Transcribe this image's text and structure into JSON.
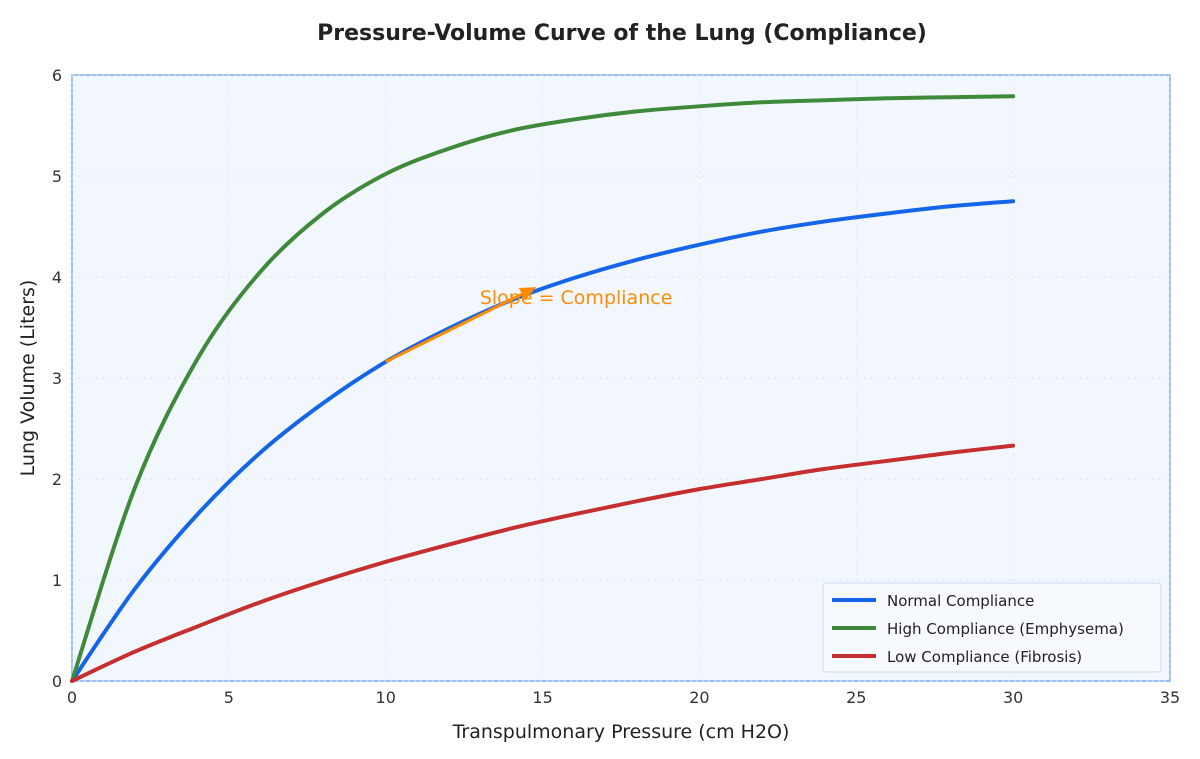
{
  "chart_data": {
    "type": "line",
    "title": "Pressure-Volume Curve of the Lung (Compliance)",
    "xlabel": "Transpulmonary Pressure (cm H2O)",
    "ylabel": "Lung Volume (Liters)",
    "xlim": [
      0,
      35
    ],
    "ylim": [
      0,
      6
    ],
    "xticks": [
      0,
      5,
      10,
      15,
      20,
      25,
      30,
      35
    ],
    "yticks": [
      0,
      1,
      2,
      3,
      4,
      5,
      6
    ],
    "grid": true,
    "legend_position": "bottom-right",
    "x": [
      0,
      2,
      4,
      6,
      8,
      10,
      12,
      14,
      16,
      18,
      20,
      22,
      24,
      26,
      28,
      30
    ],
    "series": [
      {
        "name": "Normal Compliance",
        "color": "#1565e8",
        "values": [
          0,
          0.91,
          1.65,
          2.26,
          2.75,
          3.16,
          3.49,
          3.77,
          3.99,
          4.17,
          4.32,
          4.45,
          4.55,
          4.63,
          4.7,
          4.75
        ]
      },
      {
        "name": "High Compliance (Emphysema)",
        "color": "#3f8a3a",
        "values": [
          0,
          1.91,
          3.19,
          4.05,
          4.63,
          5.02,
          5.27,
          5.45,
          5.56,
          5.64,
          5.69,
          5.73,
          5.75,
          5.77,
          5.78,
          5.79
        ]
      },
      {
        "name": "Low Compliance (Fibrosis)",
        "color": "#c62f2f",
        "values": [
          0,
          0.29,
          0.54,
          0.78,
          0.99,
          1.18,
          1.35,
          1.51,
          1.65,
          1.78,
          1.9,
          2.0,
          2.1,
          2.18,
          2.26,
          2.33
        ]
      }
    ],
    "annotation": {
      "text": "Slope = Compliance",
      "color": "#ff8c00",
      "xy": [
        14.8,
        3.9
      ],
      "xytext": [
        13,
        3.8
      ],
      "arrow_from": [
        10,
        3.16
      ]
    }
  }
}
